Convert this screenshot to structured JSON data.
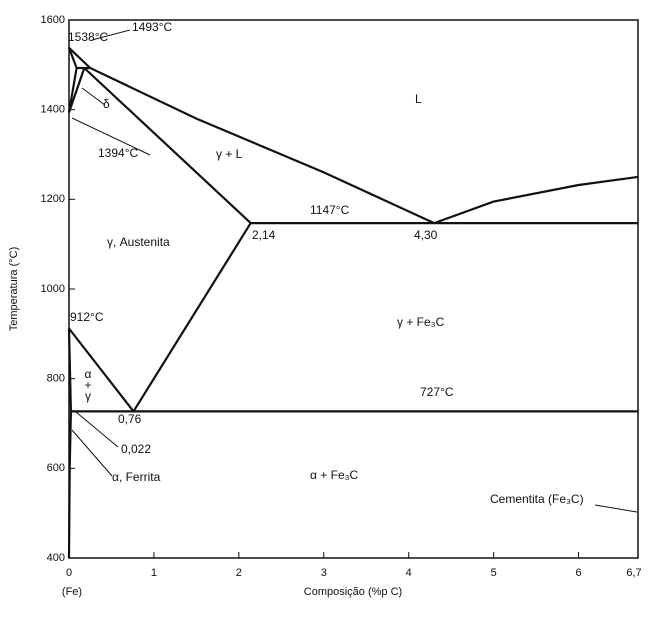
{
  "chart_data": {
    "type": "phase-diagram",
    "x_label": "Composição (%p C)",
    "y_label": "Temperatura (°C)",
    "x_origin_label": "(Fe)",
    "xlim": [
      0,
      6.7
    ],
    "ylim": [
      400,
      1600
    ],
    "xticks": [
      0,
      1,
      2,
      3,
      4,
      5,
      6,
      {
        "value": 6.7,
        "label": "6,7"
      }
    ],
    "yticks": [
      400,
      600,
      800,
      1000,
      1200,
      1400,
      1600
    ],
    "color": "#111111",
    "lines": [
      {
        "x": [
          0,
          0.25,
          1.5,
          3,
          4.3
        ],
        "y": [
          1538,
          1493,
          1380,
          1260,
          1147
        ]
      },
      {
        "x": [
          4.3,
          5,
          6,
          6.7
        ],
        "y": [
          1147,
          1195,
          1232,
          1250
        ]
      },
      {
        "x": [
          0.18,
          2.14
        ],
        "y": [
          1493,
          1147
        ]
      },
      {
        "x": [
          0.09,
          0.25
        ],
        "y": [
          1493,
          1493
        ]
      },
      {
        "x": [
          0,
          0.09
        ],
        "y": [
          1538,
          1493
        ]
      },
      {
        "x": [
          0,
          0.09
        ],
        "y": [
          1394,
          1493
        ]
      },
      {
        "x": [
          0,
          0.18
        ],
        "y": [
          1394,
          1493
        ]
      },
      {
        "x": [
          2.14,
          6.7
        ],
        "y": [
          1147,
          1147
        ]
      },
      {
        "x": [
          0.76,
          2.14
        ],
        "y": [
          727,
          1147
        ]
      },
      {
        "x": [
          0,
          0.76
        ],
        "y": [
          912,
          727
        ]
      },
      {
        "x": [
          0,
          0.022
        ],
        "y": [
          912,
          727
        ]
      },
      {
        "x": [
          0.022,
          6.7
        ],
        "y": [
          727,
          727
        ]
      },
      {
        "x": [
          0.022,
          0.008,
          0
        ],
        "y": [
          727,
          600,
          400
        ]
      }
    ],
    "annotations": [
      "1538°C",
      "1493°C",
      "δ",
      "L",
      "1394°C",
      "γ + L",
      "1147°C",
      "γ, Austenita",
      "2,14",
      "4,30",
      "912°C",
      "γ + Fe₃C",
      "α",
      "+",
      "γ",
      "727°C",
      "0,76",
      "0,022",
      "α, Ferrita",
      "α + Fe₃C",
      "Cementita (Fe₃C)"
    ]
  }
}
